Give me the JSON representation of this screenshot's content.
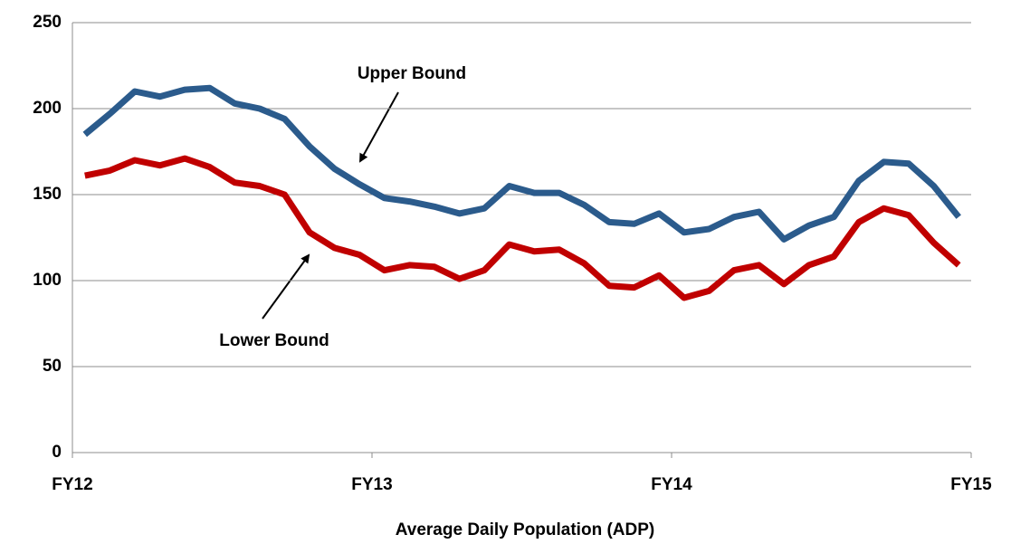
{
  "chart_data": {
    "type": "line",
    "x_label": "Average Daily Population (ADP)",
    "x": [
      0.5,
      1.5,
      2.5,
      3.5,
      4.5,
      5.5,
      6.5,
      7.5,
      8.5,
      9.5,
      10.5,
      11.5,
      12.5,
      13.5,
      14.5,
      15.5,
      16.5,
      17.5,
      18.5,
      19.5,
      20.5,
      21.5,
      22.5,
      23.5,
      24.5,
      25.5,
      26.5,
      27.5,
      28.5,
      29.5,
      30.5,
      31.5,
      32.5,
      33.5,
      34.5,
      35.5
    ],
    "xlim": [
      0,
      36
    ],
    "xticks": [
      {
        "value": 0,
        "label": "FY12"
      },
      {
        "value": 12,
        "label": "FY13"
      },
      {
        "value": 24,
        "label": "FY14"
      },
      {
        "value": 36,
        "label": "FY15"
      }
    ],
    "ylim": [
      0,
      250
    ],
    "yticks": [
      0,
      50,
      100,
      150,
      200,
      250
    ],
    "grid": true,
    "series": [
      {
        "name": "Upper Bound",
        "color": "#2b5b8c",
        "values": [
          185,
          197,
          210,
          207,
          211,
          212,
          203,
          200,
          194,
          178,
          165,
          156,
          148,
          146,
          143,
          139,
          142,
          155,
          151,
          151,
          144,
          134,
          133,
          139,
          128,
          130,
          137,
          140,
          124,
          132,
          137,
          158,
          169,
          168,
          155,
          137
        ]
      },
      {
        "name": "Lower Bound",
        "color": "#c00000",
        "values": [
          161,
          164,
          170,
          167,
          171,
          166,
          157,
          155,
          150,
          128,
          119,
          115,
          106,
          109,
          108,
          101,
          106,
          121,
          117,
          118,
          110,
          97,
          96,
          103,
          90,
          94,
          106,
          109,
          98,
          109,
          114,
          134,
          142,
          138,
          122,
          109
        ]
      }
    ]
  }
}
